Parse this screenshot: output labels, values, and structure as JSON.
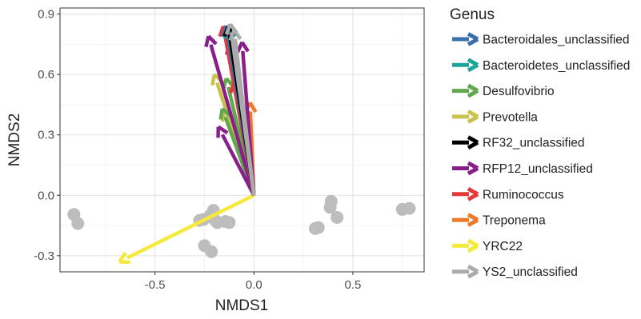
{
  "chart_data": {
    "type": "scatter",
    "title": "",
    "xlabel": "NMDS1",
    "ylabel": "NMDS2",
    "xlim": [
      -0.98,
      0.86
    ],
    "ylim": [
      -0.38,
      0.93
    ],
    "x_ticks": [
      -0.5,
      0.0,
      0.5
    ],
    "x_tick_labels": [
      "-0.5",
      "0.0",
      "0.5"
    ],
    "y_ticks": [
      -0.3,
      0.0,
      0.3,
      0.6,
      0.9
    ],
    "y_tick_labels": [
      "-0.3",
      "0.0",
      "0.3",
      "0.6",
      "0.9"
    ],
    "grid": true,
    "legend": {
      "title": "Genus",
      "placement": "right"
    },
    "points": {
      "color": "#bdbdbd",
      "x": [
        -0.91,
        -0.89,
        -0.275,
        -0.255,
        -0.22,
        -0.205,
        -0.195,
        -0.185,
        -0.145,
        -0.125,
        -0.25,
        -0.215,
        0.31,
        0.325,
        0.39,
        0.385,
        0.42,
        0.75,
        0.785
      ],
      "y": [
        -0.095,
        -0.14,
        -0.125,
        -0.12,
        -0.1,
        -0.075,
        -0.125,
        -0.135,
        -0.13,
        -0.135,
        -0.25,
        -0.28,
        -0.165,
        -0.16,
        -0.03,
        -0.06,
        -0.11,
        -0.07,
        -0.065
      ]
    },
    "series": [
      {
        "name": "Bacteroidales_unclassified",
        "color": "#3a6fae",
        "vectors": [
          [
            -0.14,
            0.84
          ]
        ]
      },
      {
        "name": "Bacteroidetes_unclassified",
        "color": "#1fa698",
        "vectors": [
          [
            -0.13,
            0.83
          ]
        ]
      },
      {
        "name": "Desulfovibrio",
        "color": "#5fa84c",
        "vectors": [
          [
            -0.14,
            0.58
          ],
          [
            -0.16,
            0.43
          ]
        ]
      },
      {
        "name": "Prevotella",
        "color": "#c9c34c",
        "vectors": [
          [
            -0.2,
            0.6
          ],
          [
            -0.15,
            0.42
          ]
        ]
      },
      {
        "name": "RF32_unclassified",
        "color": "#000000",
        "vectors": [
          [
            -0.13,
            0.84
          ]
        ]
      },
      {
        "name": "RFP12_unclassified",
        "color": "#8a1f8a",
        "vectors": [
          [
            -0.23,
            0.79
          ],
          [
            -0.06,
            0.76
          ],
          [
            -0.12,
            0.75
          ],
          [
            -0.18,
            0.34
          ]
        ]
      },
      {
        "name": "Ruminococcus",
        "color": "#e43a3a",
        "vectors": [
          [
            -0.155,
            0.84
          ],
          [
            -0.1,
            0.56
          ]
        ]
      },
      {
        "name": "Treponema",
        "color": "#ec7a2a",
        "vectors": [
          [
            -0.02,
            0.46
          ]
        ]
      },
      {
        "name": "YRC22",
        "color": "#f5ea3c",
        "vectors": [
          [
            -0.68,
            -0.33
          ]
        ]
      },
      {
        "name": "YS2_unclassified",
        "color": "#ababab",
        "vectors": [
          [
            -0.12,
            0.85
          ],
          [
            -0.1,
            0.82
          ]
        ]
      }
    ]
  }
}
